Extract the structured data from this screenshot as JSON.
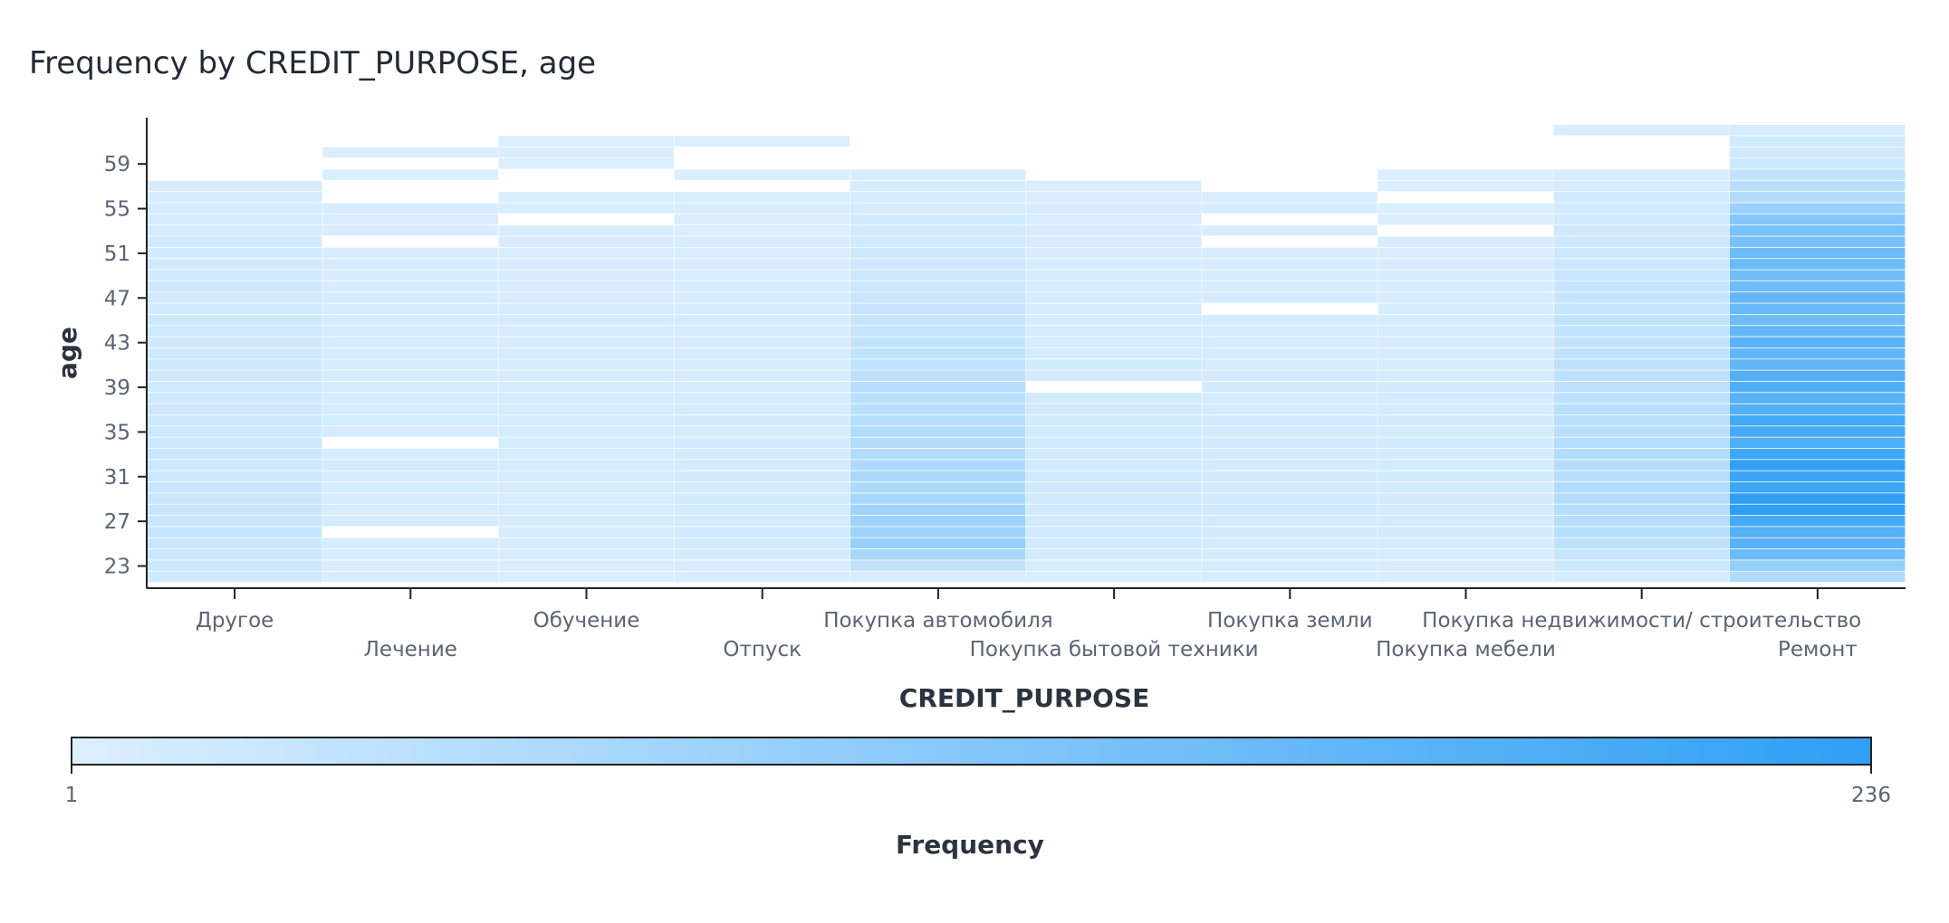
{
  "chart_data": {
    "type": "heatmap",
    "title": "Frequency by CREDIT_PURPOSE, age",
    "xlabel": "CREDIT_PURPOSE",
    "ylabel": "age",
    "categories": [
      "Другое",
      "Лечение",
      "Обучение",
      "Отпуск",
      "Покупка автомобиля",
      "Покупка бытовой техники",
      "Покупка земли",
      "Покупка мебели",
      "Покупка недвижимости/ строительство",
      "Ремонт"
    ],
    "y_ticks": [
      23,
      27,
      31,
      35,
      39,
      43,
      47,
      51,
      55,
      59
    ],
    "y_range": [
      22,
      62
    ],
    "age_extent": [
      [
        22,
        57
      ],
      [
        22,
        60
      ],
      [
        22,
        61
      ],
      [
        22,
        61
      ],
      [
        22,
        58
      ],
      [
        22,
        57
      ],
      [
        22,
        56
      ],
      [
        22,
        58
      ],
      [
        22,
        62
      ],
      [
        22,
        62
      ]
    ],
    "missing": [
      [],
      [
        59,
        57,
        56,
        52,
        34,
        26
      ],
      [
        58,
        57,
        54
      ],
      [
        60,
        59,
        57
      ],
      [],
      [
        39
      ],
      [
        54,
        52,
        46
      ],
      [
        56,
        53
      ],
      [
        61,
        60,
        59
      ],
      []
    ],
    "profiles": [
      [
        [
          22,
          18
        ],
        [
          26,
          30
        ],
        [
          30,
          26
        ],
        [
          38,
          20
        ],
        [
          45,
          18
        ],
        [
          52,
          14
        ],
        [
          57,
          8
        ]
      ],
      [
        [
          22,
          6
        ],
        [
          26,
          10
        ],
        [
          35,
          11
        ],
        [
          45,
          9
        ],
        [
          55,
          6
        ],
        [
          60,
          4
        ]
      ],
      [
        [
          22,
          4
        ],
        [
          26,
          8
        ],
        [
          35,
          10
        ],
        [
          45,
          8
        ],
        [
          55,
          5
        ],
        [
          61,
          3
        ]
      ],
      [
        [
          22,
          6
        ],
        [
          25,
          14
        ],
        [
          30,
          13
        ],
        [
          38,
          11
        ],
        [
          45,
          8
        ],
        [
          55,
          5
        ],
        [
          61,
          3
        ]
      ],
      [
        [
          22,
          10
        ],
        [
          25,
          95
        ],
        [
          27,
          85
        ],
        [
          30,
          70
        ],
        [
          35,
          55
        ],
        [
          40,
          45
        ],
        [
          45,
          30
        ],
        [
          50,
          22
        ],
        [
          55,
          12
        ],
        [
          58,
          8
        ]
      ],
      [
        [
          22,
          5
        ],
        [
          25,
          16
        ],
        [
          30,
          17
        ],
        [
          38,
          14
        ],
        [
          45,
          10
        ],
        [
          52,
          7
        ],
        [
          57,
          5
        ]
      ],
      [
        [
          22,
          8
        ],
        [
          28,
          14
        ],
        [
          35,
          12
        ],
        [
          42,
          11
        ],
        [
          48,
          9
        ],
        [
          56,
          5
        ]
      ],
      [
        [
          22,
          5
        ],
        [
          26,
          12
        ],
        [
          34,
          13
        ],
        [
          42,
          10
        ],
        [
          50,
          7
        ],
        [
          58,
          4
        ]
      ],
      [
        [
          22,
          10
        ],
        [
          25,
          45
        ],
        [
          28,
          55
        ],
        [
          32,
          55
        ],
        [
          38,
          45
        ],
        [
          45,
          35
        ],
        [
          50,
          25
        ],
        [
          55,
          15
        ],
        [
          58,
          8
        ],
        [
          62,
          3
        ]
      ],
      [
        [
          22,
          60
        ],
        [
          24,
          150
        ],
        [
          28,
          236
        ],
        [
          31,
          225
        ],
        [
          35,
          200
        ],
        [
          40,
          180
        ],
        [
          45,
          160
        ],
        [
          50,
          150
        ],
        [
          53,
          140
        ],
        [
          56,
          60
        ],
        [
          59,
          25
        ],
        [
          62,
          8
        ]
      ]
    ],
    "legend": {
      "title": "Frequency",
      "min": 1,
      "max": 236,
      "min_label": "1",
      "max_label": "236",
      "placement": "bottom"
    },
    "colors": {
      "low": "#dcefff",
      "high": "#2f9ff5"
    },
    "grid": false
  }
}
